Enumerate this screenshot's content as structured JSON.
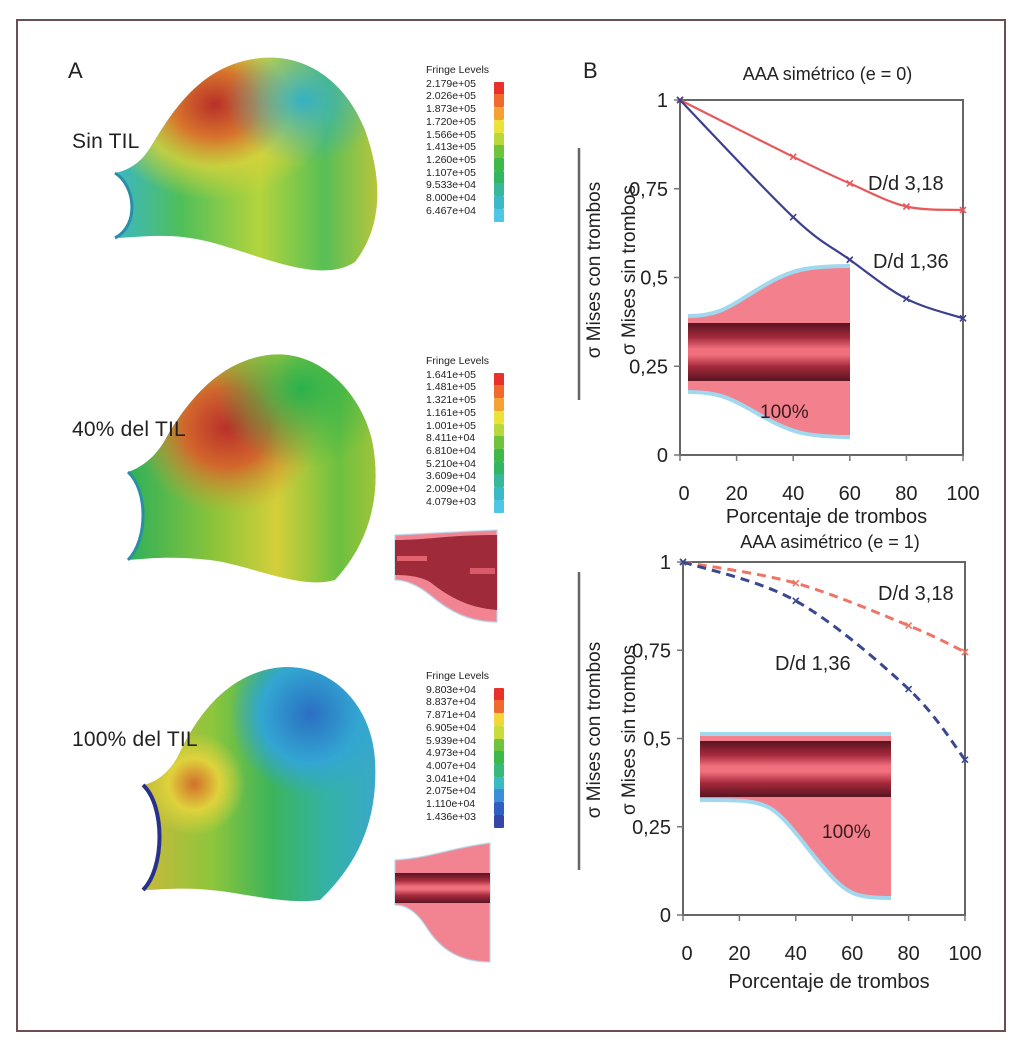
{
  "panels": {
    "A": {
      "label": "A",
      "models": [
        {
          "condition": "Sin TIL",
          "legend": {
            "title": "Fringe Levels",
            "values": [
              "2.179e+05",
              "2.026e+05",
              "1.873e+05",
              "1.720e+05",
              "1.566e+05",
              "1.413e+05",
              "1.260e+05",
              "1.107e+05",
              "9.533e+04",
              "8.000e+04",
              "6.467e+04"
            ],
            "colors": [
              "#e8312a",
              "#ef6a2c",
              "#f3a233",
              "#ece33a",
              "#b8d83c",
              "#6fc33d",
              "#3fb84a",
              "#34b562",
              "#38b89a",
              "#3cb9c9",
              "#4fc6e6"
            ]
          },
          "thrombus_percent": 0
        },
        {
          "condition": "40% del TIL",
          "legend": {
            "title": "Fringe Levels",
            "values": [
              "1.641e+05",
              "1.481e+05",
              "1.321e+05",
              "1.161e+05",
              "1.001e+05",
              "8.411e+04",
              "6.810e+04",
              "5.210e+04",
              "3.609e+04",
              "2.009e+04",
              "4.079e+03"
            ],
            "colors": [
              "#e8312a",
              "#ef6a2c",
              "#f3a233",
              "#ece33a",
              "#b8d83c",
              "#6fc33d",
              "#3fb84a",
              "#34b562",
              "#38b89a",
              "#3cb9c9",
              "#4fc6e6"
            ]
          },
          "thrombus_percent": 40
        },
        {
          "condition": "100% del TIL",
          "legend": {
            "title": "Fringe Levels",
            "values": [
              "9.803e+04",
              "8.837e+04",
              "7.871e+04",
              "6.905e+04",
              "5.939e+04",
              "4.973e+04",
              "4.007e+04",
              "3.041e+04",
              "2.075e+04",
              "1.110e+04",
              "1.436e+03"
            ],
            "colors": [
              "#e8312a",
              "#ef6a2c",
              "#f3d63a",
              "#c9dc3c",
              "#6fc33d",
              "#3fb84a",
              "#39b87a",
              "#3bb9c4",
              "#3a8fd8",
              "#2f5fc2",
              "#3447a8"
            ]
          },
          "thrombus_percent": 100
        }
      ]
    },
    "B": {
      "label": "B"
    }
  },
  "chart_data": [
    {
      "type": "line",
      "title": "AAA simétrico (e = 0)",
      "xlabel": "Porcentaje de trombos",
      "ylabel_numerator": "σ Mises con trombos",
      "ylabel_denominator": "σ Mises sin trombos",
      "x": [
        0,
        40,
        60,
        80,
        100
      ],
      "xlim": [
        0,
        100
      ],
      "ylim": [
        0,
        1
      ],
      "xticks": [
        0,
        20,
        40,
        60,
        80,
        100
      ],
      "yticks": [
        0,
        0.25,
        0.5,
        0.75,
        1
      ],
      "ytick_labels": [
        "0",
        "0,25",
        "0,5",
        "0,75",
        "1"
      ],
      "grid": false,
      "series": [
        {
          "name": "D/d 3,18",
          "values": [
            1.0,
            0.84,
            0.765,
            0.7,
            0.69
          ],
          "color": "#e8585a",
          "dashed": false
        },
        {
          "name": "D/d 1,36",
          "values": [
            1.0,
            0.67,
            0.55,
            0.44,
            0.385
          ],
          "color": "#3c3f8f",
          "dashed": false
        }
      ],
      "inset_label": "100%"
    },
    {
      "type": "line",
      "title": "AAA asimétrico (e = 1)",
      "xlabel": "Porcentaje de trombos",
      "ylabel_numerator": "σ Mises con trombos",
      "ylabel_denominator": "σ Mises sin trombos",
      "x": [
        0,
        40,
        80,
        100
      ],
      "xlim": [
        0,
        100
      ],
      "ylim": [
        0,
        1
      ],
      "xticks": [
        0,
        20,
        40,
        60,
        80,
        100
      ],
      "yticks": [
        0,
        0.25,
        0.5,
        0.75,
        1
      ],
      "ytick_labels": [
        "0",
        "0,25",
        "0,5",
        "0,75",
        "1"
      ],
      "grid": false,
      "series": [
        {
          "name": "D/d 3,18",
          "values": [
            1.0,
            0.94,
            0.82,
            0.745
          ],
          "color": "#ee7466",
          "dashed": true
        },
        {
          "name": "D/d 1,36",
          "values": [
            1.0,
            0.89,
            0.64,
            0.44
          ],
          "color": "#3a4890",
          "dashed": true
        }
      ],
      "inset_label": "100%"
    }
  ]
}
